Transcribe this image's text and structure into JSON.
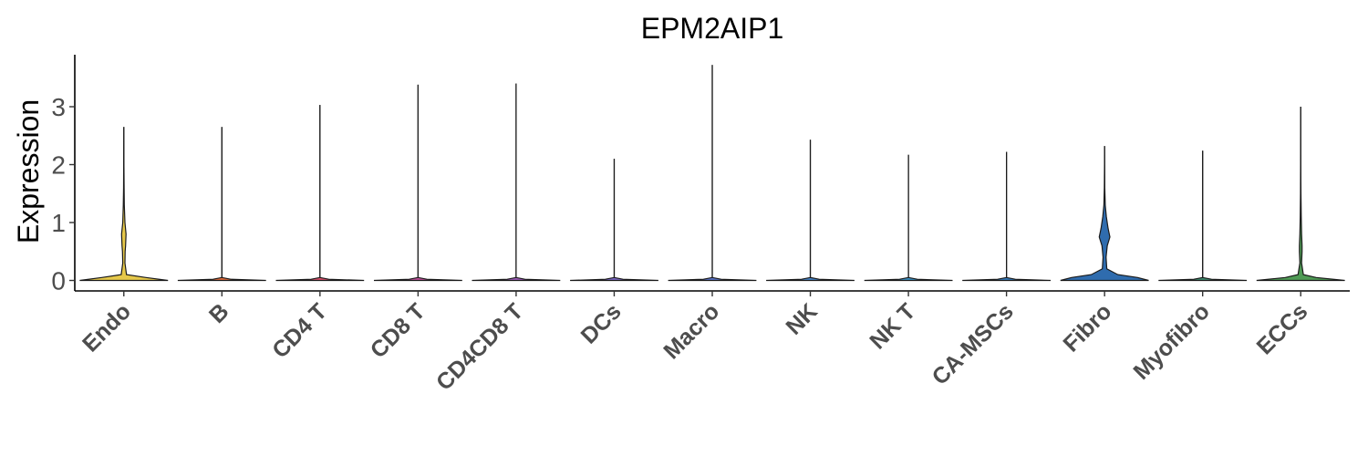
{
  "chart_data": {
    "type": "violin",
    "title": "EPM2AIP1",
    "xlabel": "",
    "ylabel": "Expression",
    "ylim": [
      -0.2,
      3.9
    ],
    "yticks": [
      0,
      1,
      2,
      3
    ],
    "grid": false,
    "legend": "none",
    "categories": [
      "Endo",
      "B",
      "CD4 T",
      "CD8 T",
      "CD4CD8 T",
      "DCs",
      "Macro",
      "NK",
      "NK T",
      "CA-MSCs",
      "Fibro",
      "Myofibro",
      "ECCs"
    ],
    "series": [
      {
        "category": "Endo",
        "color": "#e6c84a",
        "max": 2.65,
        "density": [
          [
            0,
            1.0
          ],
          [
            0.05,
            0.5
          ],
          [
            0.1,
            0.06
          ],
          [
            0.3,
            0.025
          ],
          [
            0.5,
            0.03
          ],
          [
            0.6,
            0.04
          ],
          [
            0.8,
            0.05
          ],
          [
            1.0,
            0.025
          ],
          [
            1.3,
            0.012
          ],
          [
            1.6,
            0.006
          ],
          [
            2.0,
            0.003
          ],
          [
            2.65,
            0.0
          ]
        ]
      },
      {
        "category": "B",
        "color": "#e06a3b",
        "max": 2.65,
        "density": [
          [
            0,
            1.0
          ],
          [
            0.02,
            0.2
          ],
          [
            0.05,
            0.0
          ],
          [
            2.65,
            0.0
          ]
        ]
      },
      {
        "category": "CD4 T",
        "color": "#d94f6b",
        "max": 3.03,
        "density": [
          [
            0,
            1.0
          ],
          [
            0.02,
            0.2
          ],
          [
            0.05,
            0.0
          ],
          [
            3.03,
            0.0
          ]
        ]
      },
      {
        "category": "CD8 T",
        "color": "#c0509a",
        "max": 3.38,
        "density": [
          [
            0,
            1.0
          ],
          [
            0.02,
            0.2
          ],
          [
            0.05,
            0.0
          ],
          [
            3.38,
            0.0
          ]
        ]
      },
      {
        "category": "CD4CD8 T",
        "color": "#9d5ab8",
        "max": 3.4,
        "density": [
          [
            0,
            1.0
          ],
          [
            0.02,
            0.2
          ],
          [
            0.05,
            0.0
          ],
          [
            3.4,
            0.0
          ]
        ]
      },
      {
        "category": "DCs",
        "color": "#7a67c4",
        "max": 2.1,
        "density": [
          [
            0,
            1.0
          ],
          [
            0.02,
            0.2
          ],
          [
            0.05,
            0.0
          ],
          [
            2.1,
            0.0
          ]
        ]
      },
      {
        "category": "Macro",
        "color": "#5b74c8",
        "max": 3.72,
        "density": [
          [
            0,
            1.0
          ],
          [
            0.02,
            0.2
          ],
          [
            0.05,
            0.0
          ],
          [
            3.72,
            0.0
          ]
        ]
      },
      {
        "category": "NK",
        "color": "#4683c6",
        "max": 2.43,
        "density": [
          [
            0,
            1.0
          ],
          [
            0.02,
            0.2
          ],
          [
            0.05,
            0.0
          ],
          [
            2.43,
            0.0
          ]
        ]
      },
      {
        "category": "NK T",
        "color": "#3a8fc1",
        "max": 2.17,
        "density": [
          [
            0,
            1.0
          ],
          [
            0.02,
            0.2
          ],
          [
            0.05,
            0.0
          ],
          [
            2.17,
            0.0
          ]
        ]
      },
      {
        "category": "CA-MSCs",
        "color": "#3478b8",
        "max": 2.22,
        "density": [
          [
            0,
            1.0
          ],
          [
            0.02,
            0.2
          ],
          [
            0.05,
            0.0
          ],
          [
            2.22,
            0.0
          ]
        ]
      },
      {
        "category": "Fibro",
        "color": "#2f6cae",
        "max": 2.32,
        "density": [
          [
            0,
            1.0
          ],
          [
            0.05,
            0.75
          ],
          [
            0.1,
            0.3
          ],
          [
            0.2,
            0.05
          ],
          [
            0.4,
            0.035
          ],
          [
            0.6,
            0.06
          ],
          [
            0.75,
            0.12
          ],
          [
            0.9,
            0.08
          ],
          [
            1.1,
            0.04
          ],
          [
            1.3,
            0.015
          ],
          [
            1.6,
            0.006
          ],
          [
            2.0,
            0.002
          ],
          [
            2.32,
            0.0
          ]
        ]
      },
      {
        "category": "Myofibro",
        "color": "#3f8a6e",
        "max": 2.24,
        "density": [
          [
            0,
            1.0
          ],
          [
            0.02,
            0.2
          ],
          [
            0.05,
            0.0
          ],
          [
            2.24,
            0.0
          ]
        ]
      },
      {
        "category": "ECCs",
        "color": "#4f9b55",
        "max": 3.0,
        "density": [
          [
            0,
            1.0
          ],
          [
            0.05,
            0.35
          ],
          [
            0.1,
            0.06
          ],
          [
            0.3,
            0.02
          ],
          [
            0.5,
            0.03
          ],
          [
            0.6,
            0.03
          ],
          [
            0.8,
            0.02
          ],
          [
            1.1,
            0.012
          ],
          [
            1.5,
            0.005
          ],
          [
            2.0,
            0.002
          ],
          [
            3.0,
            0.0
          ]
        ]
      }
    ]
  }
}
